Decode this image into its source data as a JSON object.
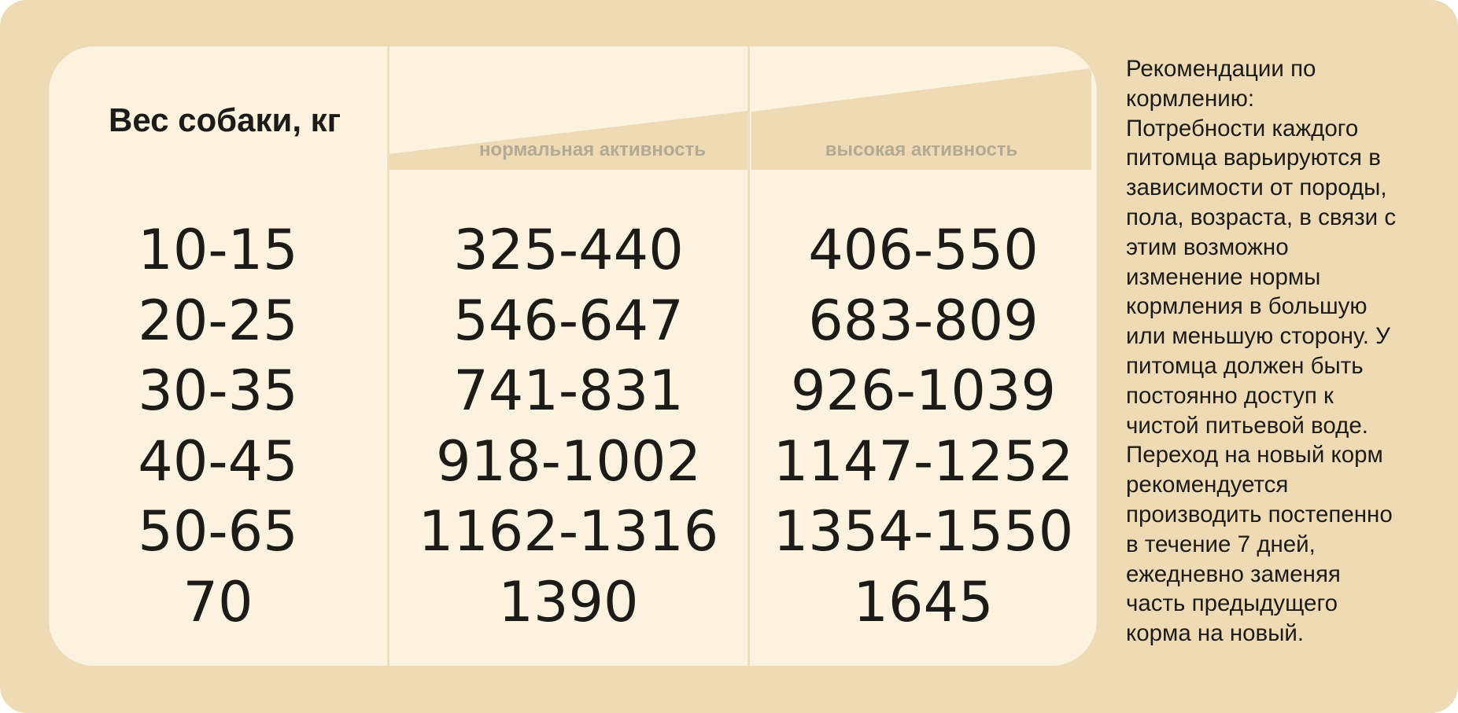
{
  "table": {
    "weight_header": "Вес собаки, кг",
    "normal_activity_label": "нормальная активность",
    "high_activity_label": "высокая активность",
    "rows": [
      {
        "weight": "10-15",
        "normal": "325-440",
        "high": "406-550"
      },
      {
        "weight": "20-25",
        "normal": "546-647",
        "high": "683-809"
      },
      {
        "weight": "30-35",
        "normal": "741-831",
        "high": "926-1039"
      },
      {
        "weight": "40-45",
        "normal": "918-1002",
        "high": "1147-1252"
      },
      {
        "weight": "50-65",
        "normal": "1162-1316",
        "high": "1354-1550"
      },
      {
        "weight": "70",
        "normal": "1390",
        "high": "1645"
      }
    ]
  },
  "notes": {
    "lines": [
      "Рекомендации по",
      "кормлению:",
      "Потребности каждого",
      "питомца варьируются в",
      "зависимости от породы,",
      "пола, возраста, в связи с",
      "этим возможно",
      "изменение нормы",
      "кормления в большую",
      "или меньшую сторону. У",
      "питомца должен быть",
      "постоянно доступ к",
      "чистой питьевой воде.",
      "Переход на новый корм",
      "рекомендуется",
      "производить постепенно",
      "в течение 7 дней,",
      "ежедневно заменяя",
      "часть предыдущего",
      "корма на новый."
    ]
  },
  "colors": {
    "frame": "#eedbb6",
    "card": "#fcf2e0",
    "wedge": "#eedbb6",
    "text": "#1c1b18",
    "muted_label": "#b3a994"
  }
}
